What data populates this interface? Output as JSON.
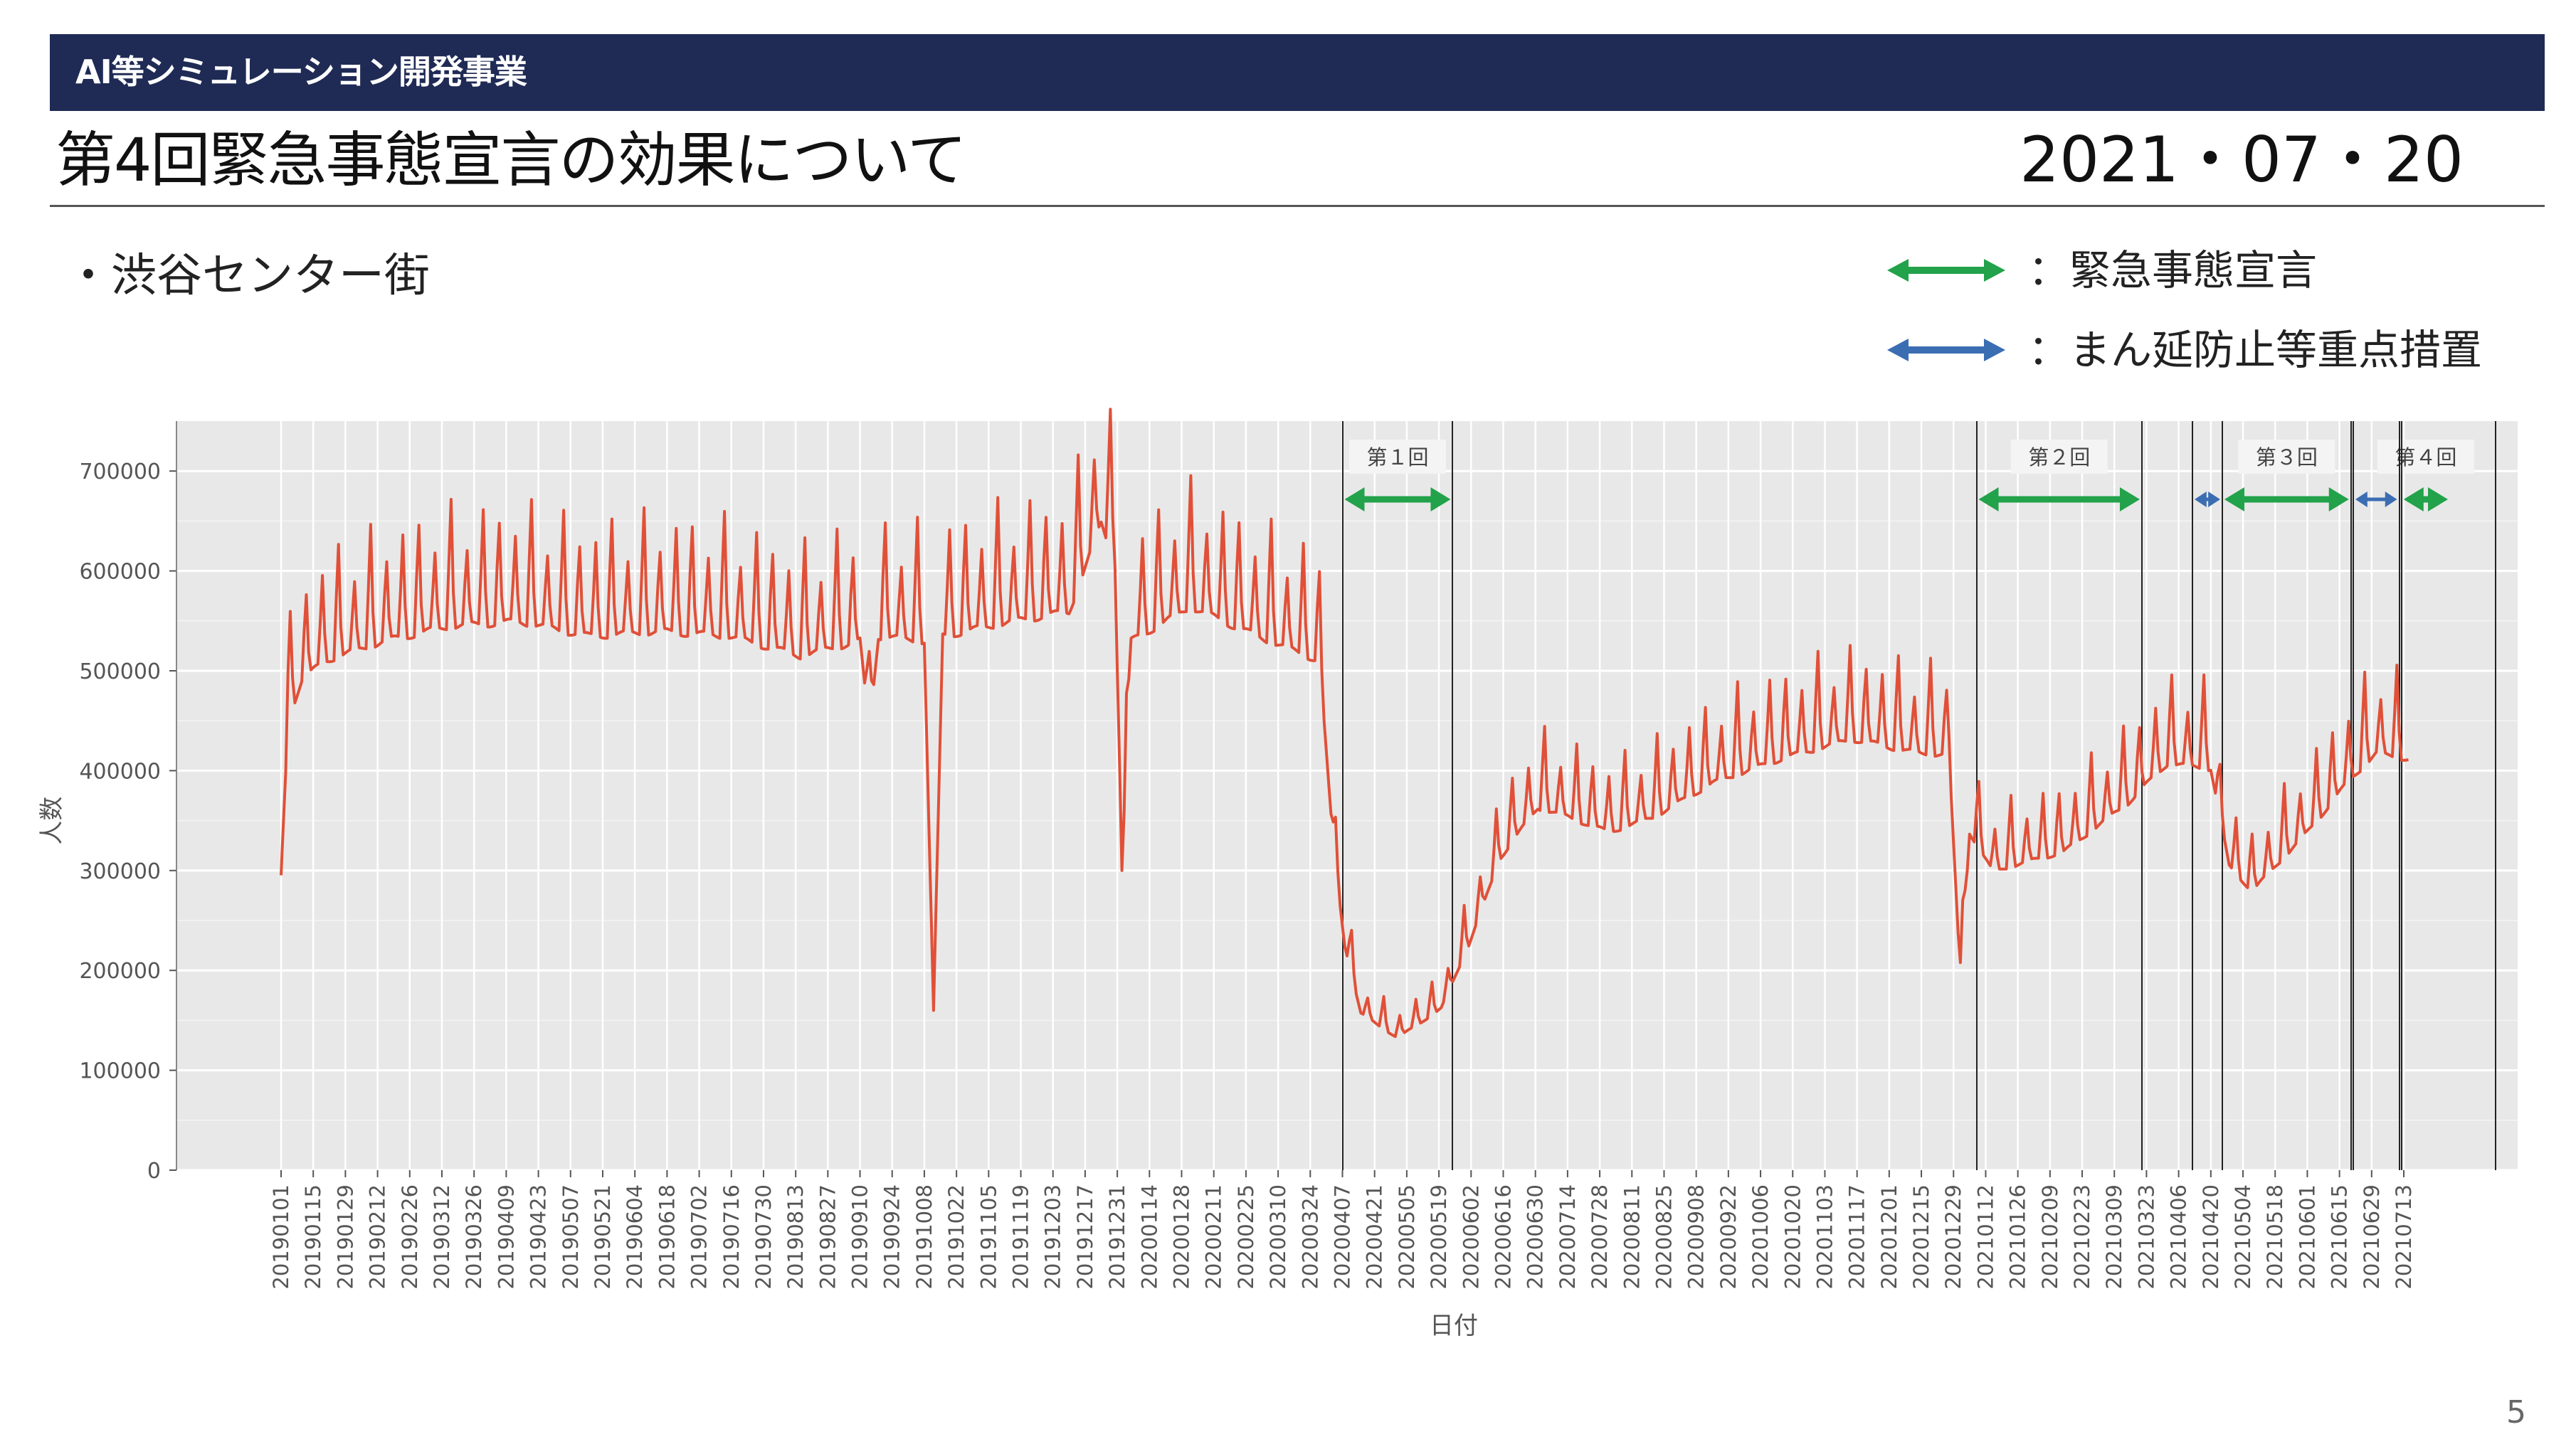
{
  "header": {
    "banner": "AI等シミュレーション開発事業",
    "title": "第4回緊急事態宣言の効果について",
    "date": "2021・07・20"
  },
  "location_label": "・渋谷センター街",
  "legend": {
    "emergency": {
      "label": "：緊急事態宣言",
      "color": "#22a24a"
    },
    "semi": {
      "label": "：まん延防止等重点措置",
      "color": "#3b6db3"
    }
  },
  "page_number": "5",
  "chart_data": {
    "type": "line",
    "xlabel": "日付",
    "ylabel": "人数",
    "ylim": [
      0,
      750000
    ],
    "yticks": [
      0,
      100000,
      200000,
      300000,
      400000,
      500000,
      600000,
      700000
    ],
    "grid": true,
    "x_tick_labels": [
      "20190101",
      "20190115",
      "20190129",
      "20190212",
      "20190226",
      "20190312",
      "20190326",
      "20190409",
      "20190423",
      "20190507",
      "20190521",
      "20190604",
      "20190618",
      "20190702",
      "20190716",
      "20190730",
      "20190813",
      "20190827",
      "20190910",
      "20190924",
      "20191008",
      "20191022",
      "20191105",
      "20191119",
      "20191203",
      "20191217",
      "20191231",
      "20200114",
      "20200128",
      "20200211",
      "20200225",
      "20200310",
      "20200324",
      "20200407",
      "20200421",
      "20200505",
      "20200519",
      "20200602",
      "20200616",
      "20200630",
      "20200714",
      "20200728",
      "20200811",
      "20200825",
      "20200908",
      "20200922",
      "20201006",
      "20201020",
      "20201103",
      "20201117",
      "20201201",
      "20201215",
      "20201229",
      "20210112",
      "20210126",
      "20210209",
      "20210223",
      "20210309",
      "20210323",
      "20210406",
      "20210420",
      "20210504",
      "20210518",
      "20210601",
      "20210615",
      "20210629",
      "20210713"
    ],
    "series": [
      {
        "color": "#e05038",
        "points": [
          [
            "2019-01-01",
            300000
          ],
          [
            "2019-01-04",
            460000
          ],
          [
            "2019-01-10",
            500000
          ],
          [
            "2019-01-20",
            520000
          ],
          [
            "2019-02-15",
            540000
          ],
          [
            "2019-03-15",
            555000
          ],
          [
            "2019-04-15",
            560000
          ],
          [
            "2019-05-15",
            545000
          ],
          [
            "2019-06-15",
            550000
          ],
          [
            "2019-07-15",
            545000
          ],
          [
            "2019-08-15",
            525000
          ],
          [
            "2019-09-10",
            540000
          ],
          [
            "2019-09-14",
            450000
          ],
          [
            "2019-09-18",
            545000
          ],
          [
            "2019-10-08",
            540000
          ],
          [
            "2019-10-12",
            160000
          ],
          [
            "2019-10-16",
            545000
          ],
          [
            "2019-11-15",
            560000
          ],
          [
            "2019-12-10",
            570000
          ],
          [
            "2019-12-24",
            660000
          ],
          [
            "2019-12-30",
            620000
          ],
          [
            "2020-01-02",
            300000
          ],
          [
            "2020-01-06",
            540000
          ],
          [
            "2020-02-01",
            575000
          ],
          [
            "2020-03-01",
            545000
          ],
          [
            "2020-03-28",
            520000
          ],
          [
            "2020-04-03",
            330000
          ],
          [
            "2020-04-08",
            230000
          ],
          [
            "2020-04-15",
            160000
          ],
          [
            "2020-05-01",
            135000
          ],
          [
            "2020-05-20",
            165000
          ],
          [
            "2020-06-01",
            230000
          ],
          [
            "2020-06-15",
            320000
          ],
          [
            "2020-07-01",
            370000
          ],
          [
            "2020-07-15",
            360000
          ],
          [
            "2020-08-01",
            345000
          ],
          [
            "2020-08-20",
            360000
          ],
          [
            "2020-09-15",
            395000
          ],
          [
            "2020-10-15",
            420000
          ],
          [
            "2020-11-15",
            440000
          ],
          [
            "2020-12-15",
            425000
          ],
          [
            "2020-12-27",
            425000
          ],
          [
            "2021-01-01",
            195000
          ],
          [
            "2021-01-05",
            345000
          ],
          [
            "2021-01-15",
            305000
          ],
          [
            "2021-02-15",
            325000
          ],
          [
            "2021-03-15",
            375000
          ],
          [
            "2021-04-01",
            415000
          ],
          [
            "2021-04-20",
            410000
          ],
          [
            "2021-04-28",
            310000
          ],
          [
            "2021-05-08",
            285000
          ],
          [
            "2021-06-01",
            345000
          ],
          [
            "2021-06-20",
            400000
          ],
          [
            "2021-07-01",
            425000
          ],
          [
            "2021-07-15",
            420000
          ]
        ]
      }
    ],
    "periods": [
      {
        "label": "第１回",
        "type": "emergency",
        "start": "2020-04-07",
        "end": "2020-05-25"
      },
      {
        "label": "第２回",
        "type": "emergency",
        "start": "2021-01-08",
        "end": "2021-03-21"
      },
      {
        "label": "",
        "type": "semi",
        "start": "2021-04-12",
        "end": "2021-04-25"
      },
      {
        "label": "第３回",
        "type": "emergency",
        "start": "2021-04-25",
        "end": "2021-06-20"
      },
      {
        "label": "",
        "type": "semi",
        "start": "2021-06-21",
        "end": "2021-07-11"
      },
      {
        "label": "第４回",
        "type": "emergency",
        "start": "2021-07-12",
        "end": "2021-08-22"
      }
    ]
  }
}
